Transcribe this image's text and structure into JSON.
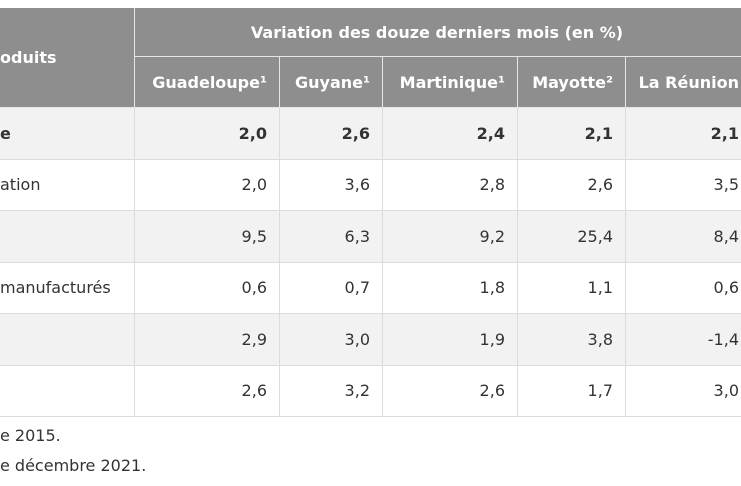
{
  "header": {
    "row_label": "oduits",
    "group": "Variation des douze derniers mois (en %)",
    "columns": [
      "Guadeloupe¹",
      "Guyane¹",
      "Martinique¹",
      "Mayotte²",
      "La Réunion"
    ]
  },
  "rows": [
    {
      "label": "e",
      "values": [
        "2,0",
        "2,6",
        "2,4",
        "2,1",
        "2,1"
      ]
    },
    {
      "label": "ation",
      "values": [
        "2,0",
        "3,6",
        "2,8",
        "2,6",
        "3,5"
      ]
    },
    {
      "label": "",
      "values": [
        "9,5",
        "6,3",
        "9,2",
        "25,4",
        "8,4"
      ]
    },
    {
      "label": "manufacturés",
      "values": [
        "0,6",
        "0,7",
        "1,8",
        "1,1",
        "0,6"
      ]
    },
    {
      "label": "",
      "values": [
        "2,9",
        "3,0",
        "1,9",
        "3,8",
        "-1,4"
      ]
    },
    {
      "label": "",
      "values": [
        "2,6",
        "3,2",
        "2,6",
        "1,7",
        "3,0"
      ]
    }
  ],
  "footnotes": [
    "e 2015.",
    "e décembre 2021."
  ]
}
